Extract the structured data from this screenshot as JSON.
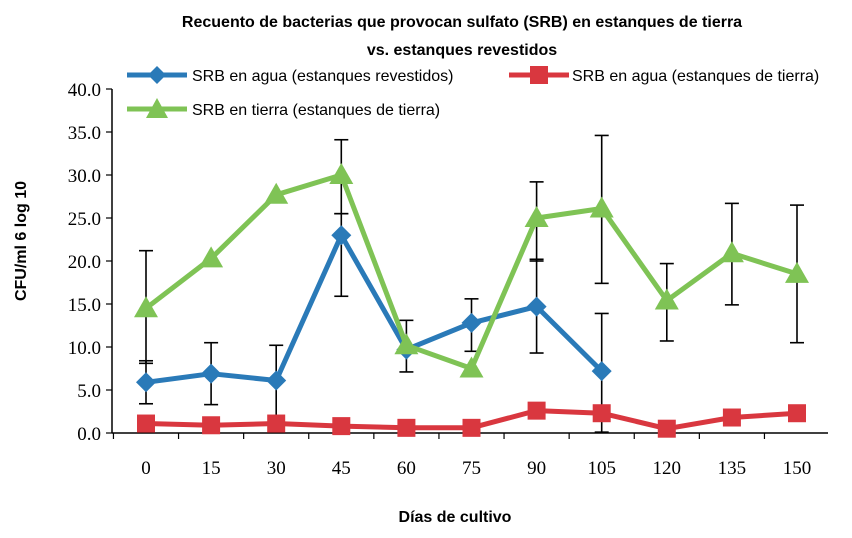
{
  "chart_data": {
    "type": "line",
    "title_line1": "Recuento de bacterias que provocan sulfato (SRB) en estanques de tierra",
    "title_line2": "vs. estanques revestidos",
    "xlabel": "Días de cultivo",
    "ylabel": "CFU/ml 6 log 10",
    "x": [
      0,
      15,
      30,
      45,
      60,
      75,
      90,
      105,
      120,
      135,
      150
    ],
    "x_tick_labels": [
      "0",
      "15",
      "30",
      "45",
      "60",
      "75",
      "90",
      "105",
      "120",
      "135",
      "150"
    ],
    "ylim": [
      0,
      40
    ],
    "y_tick_labels": [
      "0.0",
      "5.0",
      "10.0",
      "15.0",
      "20.0",
      "25.0",
      "30.0",
      "35.0",
      "40.0"
    ],
    "series": [
      {
        "name": "SRB en agua (estanques revestidos)",
        "color": "#2a7ab8",
        "marker": "diamond",
        "x": [
          0,
          15,
          30,
          45,
          60,
          75,
          90,
          105
        ],
        "values": [
          5.9,
          6.9,
          6.1,
          23.0,
          9.7,
          12.8,
          14.7,
          7.2
        ],
        "error_upper": [
          8.4,
          10.5,
          10.2,
          25.5,
          13.1,
          15.6,
          20.2,
          13.9
        ],
        "error_lower": [
          3.4,
          3.3,
          2.0,
          15.9,
          7.1,
          9.5,
          9.3,
          0.1
        ]
      },
      {
        "name": "SRB en agua (estanques de tierra)",
        "color": "#d9373f",
        "marker": "square",
        "x": [
          0,
          15,
          30,
          45,
          60,
          75,
          90,
          105,
          120,
          135,
          150
        ],
        "values": [
          1.1,
          0.9,
          1.1,
          0.8,
          0.6,
          0.6,
          2.6,
          2.3,
          0.5,
          1.8,
          2.3
        ],
        "error_upper": [
          null,
          null,
          null,
          null,
          null,
          null,
          null,
          null,
          null,
          null,
          null
        ],
        "error_lower": [
          null,
          null,
          null,
          null,
          null,
          null,
          null,
          null,
          null,
          null,
          null
        ]
      },
      {
        "name": "SRB en tierra (estanques de tierra)",
        "color": "#7fc355",
        "marker": "triangle",
        "x": [
          0,
          15,
          30,
          45,
          60,
          75,
          90,
          105,
          120,
          135,
          150
        ],
        "values": [
          14.5,
          20.3,
          27.7,
          30.0,
          10.2,
          7.5,
          25.0,
          26.1,
          15.4,
          20.9,
          18.5
        ],
        "error_upper": [
          21.2,
          null,
          null,
          34.1,
          null,
          null,
          29.2,
          34.6,
          19.7,
          26.7,
          26.5
        ],
        "error_lower": [
          8.1,
          null,
          null,
          25.5,
          null,
          null,
          20.0,
          17.4,
          10.7,
          14.9,
          10.5
        ]
      }
    ],
    "legend_position": "top"
  }
}
